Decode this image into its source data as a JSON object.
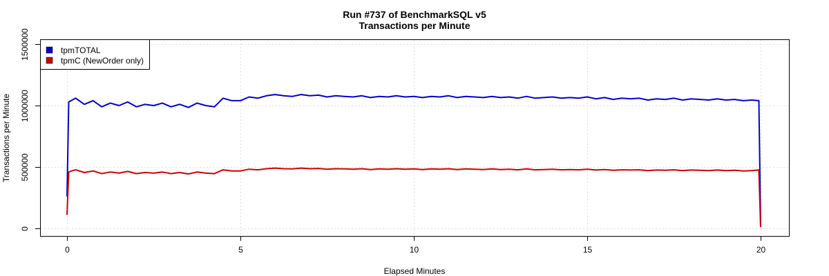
{
  "chart_data": {
    "type": "line",
    "title": "Run #737 of BenchmarkSQL v5",
    "subtitle": "Transactions per Minute",
    "xlabel": "Elapsed Minutes",
    "ylabel": "Transactions per Minute",
    "xlim": [
      -1.5,
      20.9
    ],
    "ylim": [
      -60000,
      1550000
    ],
    "xticks": [
      0,
      5,
      10,
      15,
      20
    ],
    "xtick_labels": [
      "0",
      "5",
      "10",
      "15",
      "20"
    ],
    "yticks": [
      0,
      500000,
      1000000,
      1500000
    ],
    "ytick_labels": [
      "0",
      "500000",
      "1000000",
      "1500000"
    ],
    "grid": true,
    "legend_placement": "top-left",
    "x": [
      0,
      0.05,
      0.25,
      0.5,
      0.75,
      1,
      1.25,
      1.5,
      1.75,
      2,
      2.25,
      2.5,
      2.75,
      3,
      3.25,
      3.5,
      3.75,
      4,
      4.25,
      4.5,
      4.75,
      5,
      5.25,
      5.5,
      5.75,
      6,
      6.25,
      6.5,
      6.75,
      7,
      7.25,
      7.5,
      7.75,
      8,
      8.25,
      8.5,
      8.75,
      9,
      9.25,
      9.5,
      9.75,
      10,
      10.25,
      10.5,
      10.75,
      11,
      11.25,
      11.5,
      11.75,
      12,
      12.25,
      12.5,
      12.75,
      13,
      13.25,
      13.5,
      13.75,
      14,
      14.25,
      14.5,
      14.75,
      15,
      15.25,
      15.5,
      15.75,
      16,
      16.25,
      16.5,
      16.75,
      17,
      17.25,
      17.5,
      17.75,
      18,
      18.25,
      18.5,
      18.75,
      19,
      19.25,
      19.5,
      19.75,
      19.95,
      20
    ],
    "series": [
      {
        "name": "tpmTOTAL",
        "color": "#0000cc",
        "values": [
          260000,
          1030000,
          1060000,
          1010000,
          1040000,
          990000,
          1020000,
          1000000,
          1030000,
          990000,
          1010000,
          1000000,
          1020000,
          990000,
          1010000,
          985000,
          1020000,
          1000000,
          990000,
          1060000,
          1040000,
          1040000,
          1070000,
          1060000,
          1080000,
          1090000,
          1080000,
          1075000,
          1090000,
          1080000,
          1085000,
          1070000,
          1080000,
          1075000,
          1070000,
          1080000,
          1065000,
          1075000,
          1070000,
          1080000,
          1070000,
          1075000,
          1065000,
          1075000,
          1070000,
          1080000,
          1065000,
          1075000,
          1070000,
          1065000,
          1075000,
          1065000,
          1070000,
          1060000,
          1075000,
          1060000,
          1065000,
          1070000,
          1060000,
          1065000,
          1060000,
          1070000,
          1055000,
          1065000,
          1050000,
          1060000,
          1055000,
          1060000,
          1045000,
          1055000,
          1050000,
          1060000,
          1045000,
          1055000,
          1050000,
          1045000,
          1055000,
          1045000,
          1050000,
          1040000,
          1045000,
          1040000,
          30000
        ]
      },
      {
        "name": "tpmC (NewOrder only)",
        "color": "#cc0000",
        "values": [
          110000,
          460000,
          477000,
          455000,
          468000,
          446000,
          459000,
          450000,
          464000,
          446000,
          455000,
          450000,
          459000,
          446000,
          455000,
          443000,
          459000,
          450000,
          446000,
          477000,
          468000,
          468000,
          482000,
          477000,
          486000,
          491000,
          486000,
          484000,
          491000,
          486000,
          488000,
          482000,
          486000,
          484000,
          482000,
          486000,
          479000,
          484000,
          482000,
          486000,
          482000,
          484000,
          479000,
          484000,
          482000,
          486000,
          479000,
          484000,
          482000,
          479000,
          484000,
          479000,
          482000,
          477000,
          484000,
          477000,
          479000,
          482000,
          477000,
          479000,
          477000,
          482000,
          475000,
          479000,
          473000,
          477000,
          475000,
          477000,
          470000,
          475000,
          473000,
          477000,
          470000,
          475000,
          473000,
          470000,
          475000,
          470000,
          473000,
          468000,
          470000,
          475000,
          10000
        ]
      }
    ]
  }
}
